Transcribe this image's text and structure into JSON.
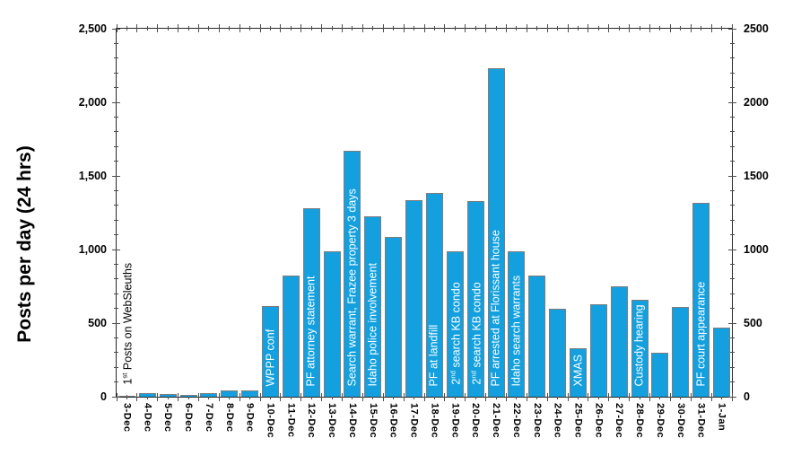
{
  "chart_data": {
    "type": "bar",
    "title": "",
    "xlabel": "",
    "ylabel": "Posts per day (24 hrs)",
    "ylim": [
      0,
      2500
    ],
    "y_major_step": 500,
    "y_minor_step": 100,
    "grid": false,
    "legend": "none",
    "bar_color": "#14A0DF",
    "bar_border_color": "#7D7D7D",
    "axis_color": "#262626",
    "left_tick_labels": [
      "0",
      "500",
      "1,000",
      "1,500",
      "2,000",
      "2,500"
    ],
    "right_tick_labels": [
      "0",
      "500",
      "1000",
      "1500",
      "2000",
      "2500"
    ],
    "categories": [
      "3-Dec",
      "4-Dec",
      "5-Dec",
      "6-Dec",
      "7-Dec",
      "8-Dec",
      "9-Dec",
      "10-Dec",
      "11-Dec",
      "12-Dec",
      "13-Dec",
      "14-Dec",
      "15-Dec",
      "16-Dec",
      "17-Dec",
      "18-Dec",
      "19-Dec",
      "20-Dec",
      "21-Dec",
      "22-Dec",
      "23-Dec",
      "24-Dec",
      "25-Dec",
      "26-Dec",
      "27-Dec",
      "28-Dec",
      "29-Dec",
      "30-Dec",
      "31-Dec",
      "1-Jan"
    ],
    "values": [
      5,
      25,
      18,
      15,
      22,
      45,
      40,
      615,
      825,
      1280,
      985,
      1670,
      1225,
      1085,
      1335,
      1385,
      985,
      1330,
      2230,
      985,
      825,
      595,
      330,
      630,
      750,
      660,
      300,
      610,
      1320,
      470
    ],
    "annotations": [
      {
        "index": 0,
        "text": "1^{st} Posts on WebSleuths",
        "color": "#000000"
      },
      {
        "index": 7,
        "text": "WPPP conf",
        "color": "#FFFFFF"
      },
      {
        "index": 9,
        "text": "PF attorney statement",
        "color": "#FFFFFF"
      },
      {
        "index": 11,
        "text": "Search warrant, Frazee property 3 days",
        "color": "#FFFFFF"
      },
      {
        "index": 12,
        "text": "Idaho police involvement",
        "color": "#FFFFFF"
      },
      {
        "index": 15,
        "text": "PF at landfill",
        "color": "#FFFFFF"
      },
      {
        "index": 16,
        "text": "2^{nd} search KB condo",
        "color": "#FFFFFF"
      },
      {
        "index": 17,
        "text": "2^{nd} search KB condo",
        "color": "#FFFFFF"
      },
      {
        "index": 18,
        "text": "PF arrested at Florissant house",
        "color": "#FFFFFF"
      },
      {
        "index": 19,
        "text": "Idaho search warrants",
        "color": "#FFFFFF"
      },
      {
        "index": 22,
        "text": "XMAS",
        "color": "#FFFFFF"
      },
      {
        "index": 25,
        "text": "Custody hearing",
        "color": "#FFFFFF"
      },
      {
        "index": 28,
        "text": "PF court appearance",
        "color": "#FFFFFF"
      }
    ]
  }
}
